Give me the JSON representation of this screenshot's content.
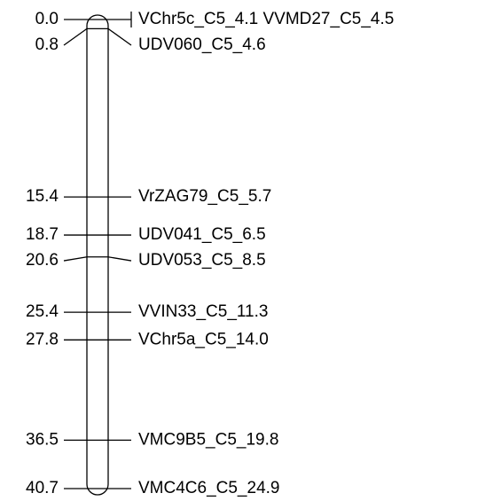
{
  "markers": [
    {
      "position": "0.0",
      "name": "VChr5c_C5_4.1 VVMD27_C5_4.5"
    },
    {
      "position": "0.8",
      "name": "UDV060_C5_4.6"
    },
    {
      "position": "15.4",
      "name": "VrZAG79_C5_5.7"
    },
    {
      "position": "18.7",
      "name": "UDV041_C5_6.5"
    },
    {
      "position": "20.6",
      "name": "UDV053_C5_8.5"
    },
    {
      "position": "25.4",
      "name": "VVIN33_C5_11.3"
    },
    {
      "position": "27.8",
      "name": "VChr5a_C5_14.0"
    },
    {
      "position": "36.5",
      "name": "VMC9B5_C5_19.8"
    },
    {
      "position": "40.7",
      "name": "VMC4C6_C5_24.9"
    }
  ]
}
